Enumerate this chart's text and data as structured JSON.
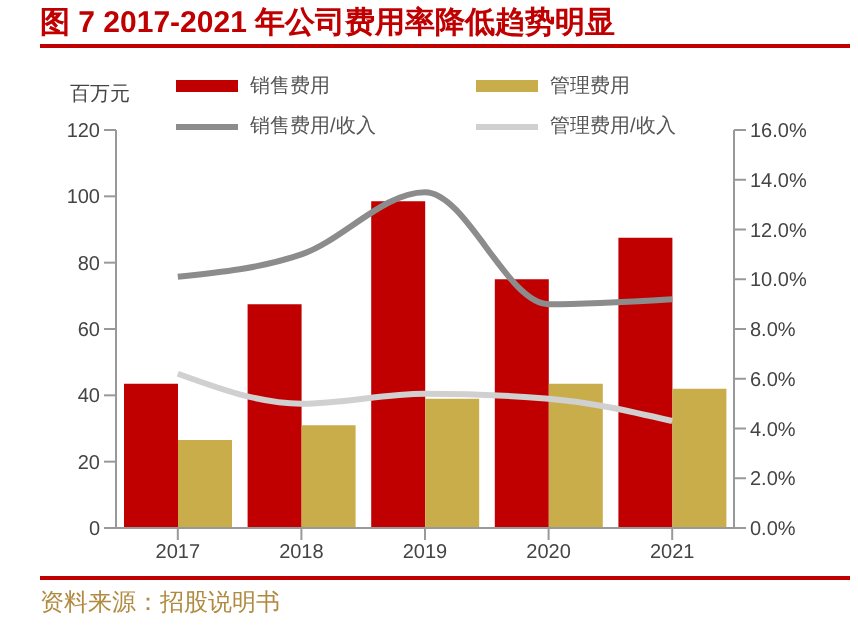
{
  "chart_data": {
    "type": "bar",
    "title": "图 7 2017-2021 年公司费用率降低趋势明显",
    "ylabel": "百万元",
    "annotations": [
      "资料来源：招股说明书"
    ],
    "categories": [
      "2017",
      "2018",
      "2019",
      "2020",
      "2021"
    ],
    "series": [
      {
        "name": "销售费用",
        "color": "#c00000",
        "values": [
          43.5,
          67.5,
          98.5,
          75,
          87.5
        ]
      },
      {
        "name": "管理费用",
        "color": "#c9ad4b",
        "values": [
          26.5,
          31,
          39,
          43.5,
          42
        ]
      },
      {
        "name": "销售费用/收入",
        "type": "line",
        "axis": "y2",
        "color": "#8c8c8c",
        "values": [
          10.1,
          11.0,
          13.5,
          9.0,
          9.2
        ]
      },
      {
        "name": "管理费用/收入",
        "type": "line",
        "axis": "y2",
        "color": "#d0d0d0",
        "values": [
          6.2,
          5.0,
          5.4,
          5.2,
          4.3
        ]
      }
    ],
    "ylim": [
      0,
      120
    ],
    "yticks": [
      0,
      20,
      40,
      60,
      80,
      100,
      120
    ],
    "y2lim": [
      0,
      16
    ],
    "y2ticks": [
      {
        "value": 0,
        "label": "0.0%"
      },
      {
        "value": 2,
        "label": "2.0%"
      },
      {
        "value": 4,
        "label": "4.0%"
      },
      {
        "value": 6,
        "label": "6.0%"
      },
      {
        "value": 8,
        "label": "8.0%"
      },
      {
        "value": 10,
        "label": "10.0%"
      },
      {
        "value": 12,
        "label": "12.0%"
      },
      {
        "value": 14,
        "label": "14.0%"
      },
      {
        "value": 16,
        "label": "16.0%"
      }
    ],
    "grid": false,
    "legend": "top",
    "marker": "none",
    "line_style": "solid"
  }
}
